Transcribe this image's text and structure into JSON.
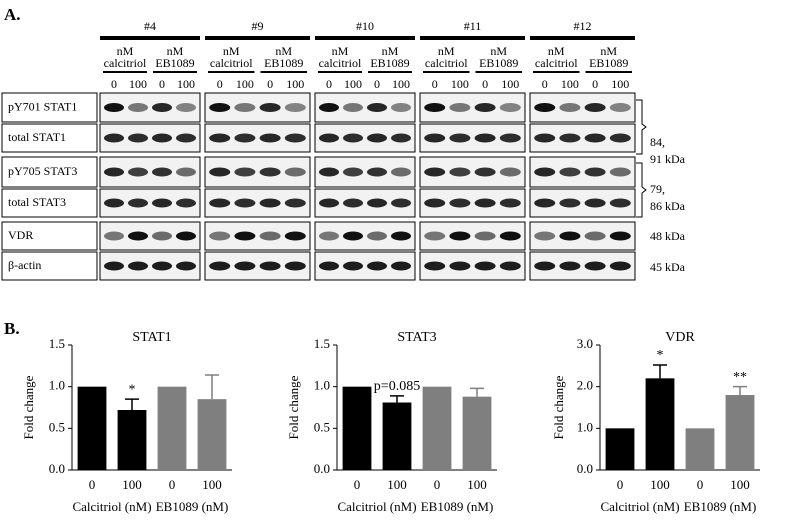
{
  "panel_a": {
    "label": "A.",
    "donors": [
      "#4",
      "#9",
      "#10",
      "#11",
      "#12"
    ],
    "treatments": [
      [
        "nM",
        "calcitriol"
      ],
      [
        "nM",
        "EB1089"
      ]
    ],
    "doses": [
      "0",
      "100"
    ],
    "rows": [
      "pY701 STAT1",
      "total STAT1",
      "pY705 STAT3",
      "total STAT3",
      "VDR",
      "β-actin"
    ],
    "sizes": [
      [
        "84,",
        "91 kDa"
      ],
      [
        "79,",
        "86 kDa"
      ],
      [
        "48 kDa"
      ],
      [
        "45 kDa"
      ]
    ]
  },
  "panel_b": {
    "label": "B."
  },
  "chart_data": [
    {
      "type": "bar",
      "title": "STAT1",
      "y_label": "Fold change",
      "categories": [
        "0",
        "100",
        "0",
        "100"
      ],
      "groups": [
        "Calcitriol (nM)",
        "EB1089 (nM)"
      ],
      "values": [
        1.0,
        0.72,
        1.0,
        0.85
      ],
      "errors": [
        null,
        0.13,
        null,
        0.29
      ],
      "colors": [
        "#000000",
        "#000000",
        "#7f7f7f",
        "#7f7f7f"
      ],
      "value_annotations": [
        null,
        "*",
        null,
        null
      ],
      "ylim": [
        0,
        1.5
      ],
      "yticks": [
        {
          "value": 0,
          "label": "0.0"
        },
        {
          "value": 0.5,
          "label": "0.5"
        },
        {
          "value": 1,
          "label": "1.0"
        },
        {
          "value": 1.5,
          "label": "1.5"
        }
      ]
    },
    {
      "type": "bar",
      "title": "STAT3",
      "y_label": "Fold change",
      "categories": [
        "0",
        "100",
        "0",
        "100"
      ],
      "groups": [
        "Calcitriol (nM)",
        "EB1089 (nM)"
      ],
      "values": [
        1.0,
        0.81,
        1.0,
        0.88
      ],
      "errors": [
        null,
        0.08,
        null,
        0.1
      ],
      "colors": [
        "#000000",
        "#000000",
        "#7f7f7f",
        "#7f7f7f"
      ],
      "value_annotations": [
        null,
        "p=0.085",
        null,
        null
      ],
      "ylim": [
        0,
        1.5
      ],
      "yticks": [
        {
          "value": 0,
          "label": "0.0"
        },
        {
          "value": 0.5,
          "label": "0.5"
        },
        {
          "value": 1,
          "label": "1.0"
        },
        {
          "value": 1.5,
          "label": "1.5"
        }
      ]
    },
    {
      "type": "bar",
      "title": "VDR",
      "y_label": "Fold change",
      "categories": [
        "0",
        "100",
        "0",
        "100"
      ],
      "groups": [
        "Calcitriol (nM)",
        "EB1089 (nM)"
      ],
      "values": [
        1.0,
        2.2,
        1.0,
        1.8
      ],
      "errors": [
        null,
        0.32,
        null,
        0.2
      ],
      "colors": [
        "#000000",
        "#000000",
        "#7f7f7f",
        "#7f7f7f"
      ],
      "value_annotations": [
        null,
        "*",
        null,
        "**"
      ],
      "ylim": [
        0,
        3
      ],
      "yticks": [
        {
          "value": 0,
          "label": "0.0"
        },
        {
          "value": 1,
          "label": "1.0"
        },
        {
          "value": 2,
          "label": "2.0"
        },
        {
          "value": 3,
          "label": "3.0"
        }
      ]
    }
  ]
}
